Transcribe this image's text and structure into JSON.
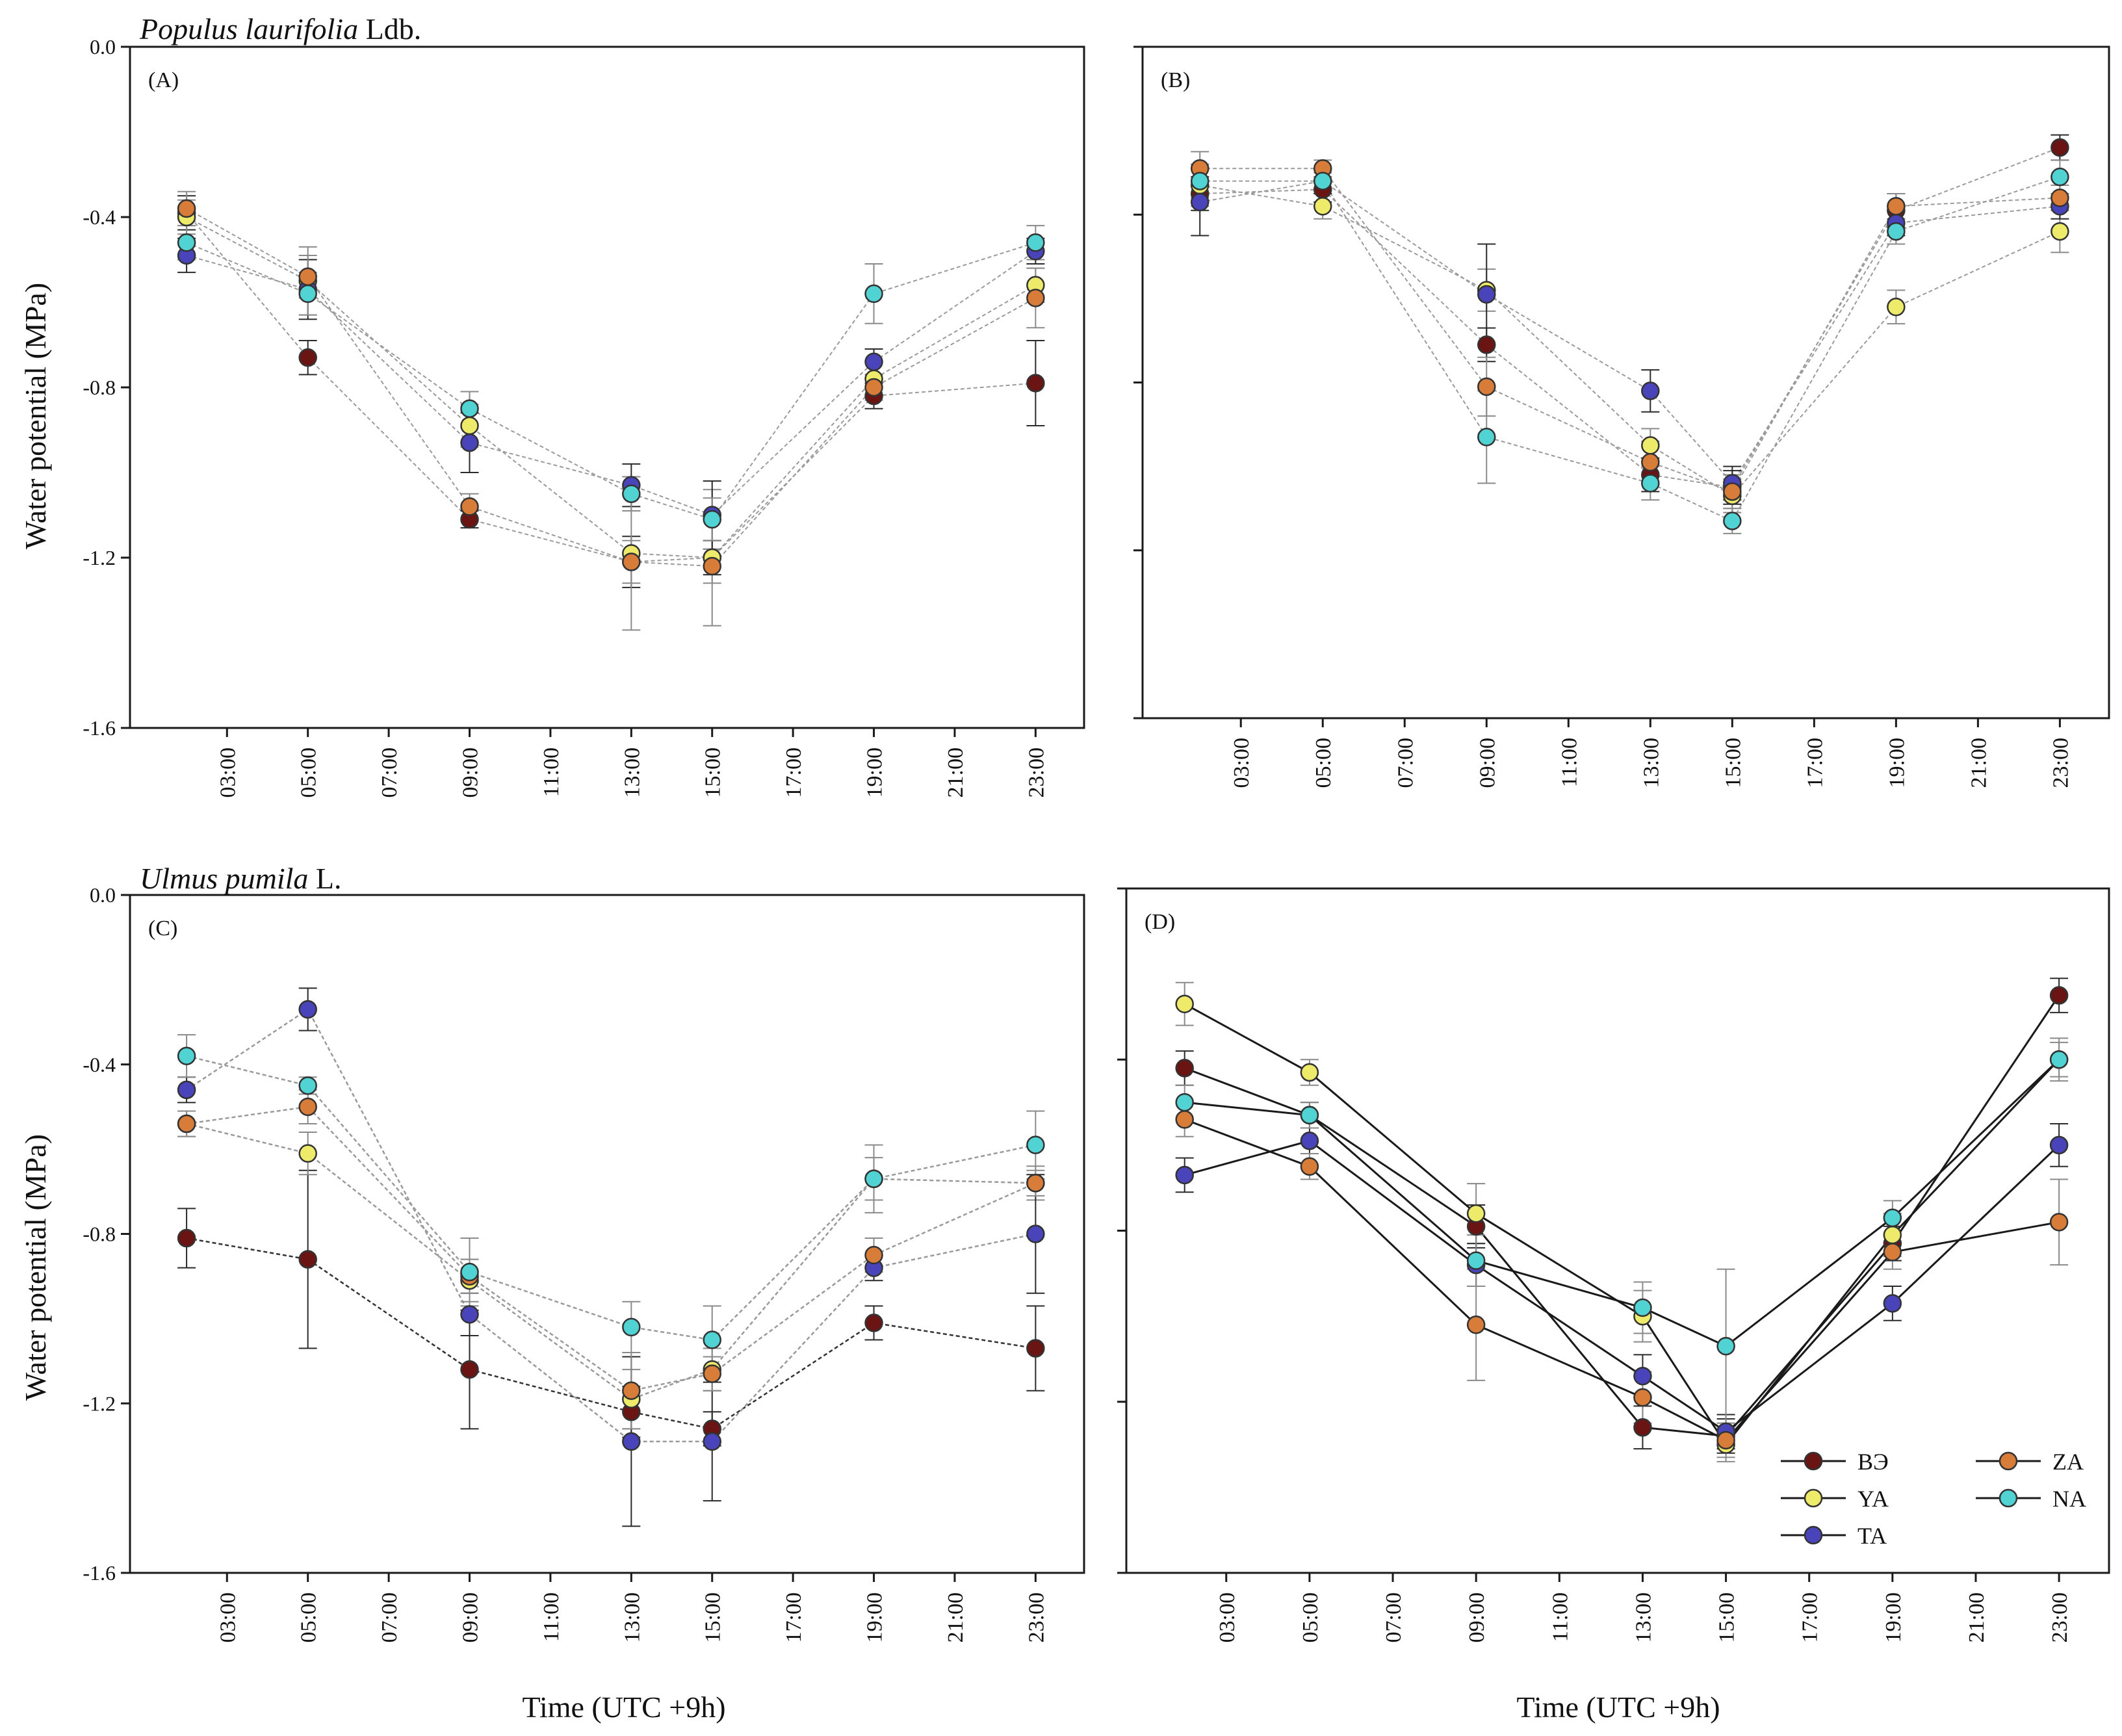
{
  "figure": {
    "x_axis_title": "Time (UTC +9h)",
    "y_axis_title": "Water potential (MPa)",
    "time_labels": [
      "03:00",
      "05:00",
      "07:00",
      "09:00",
      "11:00",
      "13:00",
      "15:00",
      "17:00",
      "19:00",
      "21:00",
      "23:00"
    ],
    "y_ticks": [
      "0.0",
      "-0.4",
      "-0.8",
      "-1.2",
      "-1.6"
    ],
    "species": [
      {
        "name": "Populus laurifolia",
        "author": " Ldb."
      },
      {
        "name": "Ulmus pumila",
        "author": " L."
      }
    ]
  },
  "legend": {
    "entries": [
      {
        "key": "BE",
        "label": "BЭ",
        "color": "#6b1414"
      },
      {
        "key": "YA",
        "label": "YA",
        "color": "#eeea6a"
      },
      {
        "key": "TA",
        "label": "TA",
        "color": "#4a44bb"
      },
      {
        "key": "ZA",
        "label": "ZA",
        "color": "#d87c3a"
      },
      {
        "key": "NA",
        "label": "NA",
        "color": "#52d3d3"
      }
    ]
  },
  "chart_data": [
    {
      "panel": "(A)",
      "type": "line",
      "ylim": [
        -1.6,
        0.0
      ],
      "x": [
        2,
        5,
        9,
        13,
        15,
        19,
        23
      ],
      "series": [
        {
          "name": "BЭ",
          "values": [
            -0.39,
            -0.73,
            -1.11,
            -1.21,
            -1.2,
            -0.82,
            -0.79
          ],
          "err": [
            0.04,
            0.04,
            0.02,
            0.06,
            0.04,
            0.03,
            0.1
          ]
        },
        {
          "name": "YA",
          "values": [
            -0.4,
            -0.55,
            -0.89,
            -1.19,
            -1.2,
            -0.78,
            -0.56
          ],
          "err": [
            0.04,
            0.08,
            0.05,
            0.18,
            0.16,
            0.04,
            0.04
          ]
        },
        {
          "name": "TA",
          "values": [
            -0.49,
            -0.57,
            -0.93,
            -1.03,
            -1.1,
            -0.74,
            -0.48
          ],
          "err": [
            0.04,
            0.07,
            0.07,
            0.05,
            0.08,
            0.03,
            0.03
          ]
        },
        {
          "name": "ZA",
          "values": [
            -0.38,
            -0.54,
            -1.08,
            -1.21,
            -1.22,
            -0.8,
            -0.59
          ],
          "err": [
            0.04,
            0.05,
            0.03,
            0.05,
            0.04,
            0.03,
            0.07
          ]
        },
        {
          "name": "NA",
          "values": [
            -0.46,
            -0.58,
            -0.85,
            -1.05,
            -1.11,
            -0.58,
            -0.46
          ],
          "err": [
            0.04,
            0.05,
            0.04,
            0.04,
            0.05,
            0.07,
            0.04
          ]
        }
      ]
    },
    {
      "panel": "(B)",
      "type": "line",
      "ylim": [
        -1.6,
        0.0
      ],
      "x": [
        2,
        5,
        9,
        13,
        15,
        19,
        23
      ],
      "series": [
        {
          "name": "BЭ",
          "values": [
            -0.35,
            -0.34,
            -0.71,
            -1.02,
            -1.05,
            -0.39,
            -0.24
          ],
          "err": [
            0.04,
            0.03,
            0.04,
            0.04,
            0.04,
            0.04,
            0.03
          ]
        },
        {
          "name": "YA",
          "values": [
            -0.33,
            -0.38,
            -0.58,
            -0.95,
            -1.07,
            -0.62,
            -0.44
          ],
          "err": [
            0.05,
            0.03,
            0.05,
            0.04,
            0.04,
            0.04,
            0.05
          ]
        },
        {
          "name": "TA",
          "values": [
            -0.37,
            -0.32,
            -0.59,
            -0.82,
            -1.04,
            -0.42,
            -0.38
          ],
          "err": [
            0.08,
            0.03,
            0.12,
            0.05,
            0.04,
            0.03,
            0.03
          ]
        },
        {
          "name": "ZA",
          "values": [
            -0.29,
            -0.29,
            -0.81,
            -0.99,
            -1.06,
            -0.38,
            -0.36
          ],
          "err": [
            0.04,
            0.02,
            0.07,
            0.05,
            0.04,
            0.03,
            0.03
          ]
        },
        {
          "name": "NA",
          "values": [
            -0.32,
            -0.32,
            -0.93,
            -1.04,
            -1.13,
            -0.44,
            -0.31
          ],
          "err": [
            0.04,
            0.02,
            0.11,
            0.04,
            0.03,
            0.03,
            0.04
          ]
        }
      ]
    },
    {
      "panel": "(C)",
      "type": "line",
      "ylim": [
        -1.6,
        0.0
      ],
      "x": [
        2,
        5,
        9,
        13,
        15,
        19,
        23
      ],
      "series": [
        {
          "name": "BЭ",
          "values": [
            -0.81,
            -0.86,
            -1.12,
            -1.22,
            -1.26,
            -1.01,
            -1.07
          ],
          "err": [
            0.07,
            0.21,
            0.14,
            0.06,
            0.04,
            0.04,
            0.1
          ]
        },
        {
          "name": "YA",
          "values": [
            -0.54,
            -0.61,
            -0.91,
            -1.19,
            -1.12,
            -0.67,
            -0.68
          ],
          "err": [
            0.03,
            0.05,
            0.05,
            0.07,
            0.05,
            0.05,
            0.04
          ]
        },
        {
          "name": "TA",
          "values": [
            -0.46,
            -0.27,
            -0.99,
            -1.29,
            -1.29,
            -0.88,
            -0.8
          ],
          "err": [
            0.03,
            0.05,
            0.05,
            0.2,
            0.14,
            0.03,
            0.14
          ]
        },
        {
          "name": "ZA",
          "values": [
            -0.54,
            -0.5,
            -0.9,
            -1.17,
            -1.13,
            -0.85,
            -0.68
          ],
          "err": [
            0.03,
            0.04,
            0.04,
            0.09,
            0.04,
            0.04,
            0.03
          ]
        },
        {
          "name": "NA",
          "values": [
            -0.38,
            -0.45,
            -0.89,
            -1.02,
            -1.05,
            -0.67,
            -0.59
          ],
          "err": [
            0.05,
            0.02,
            0.08,
            0.06,
            0.08,
            0.08,
            0.08
          ]
        }
      ]
    },
    {
      "panel": "(D)",
      "type": "line",
      "ylim": [
        -1.6,
        0.0
      ],
      "x": [
        2,
        5,
        9,
        13,
        15,
        19,
        23
      ],
      "series": [
        {
          "name": "BЭ",
          "values": [
            -0.42,
            -0.53,
            -0.79,
            -1.26,
            -1.28,
            -0.83,
            -0.25
          ],
          "err": [
            0.04,
            0.03,
            0.05,
            0.05,
            0.04,
            0.04,
            0.04
          ]
        },
        {
          "name": "YA",
          "values": [
            -0.27,
            -0.43,
            -0.76,
            -1.0,
            -1.3,
            -0.81,
            -0.4
          ],
          "err": [
            0.05,
            0.03,
            0.07,
            0.06,
            0.04,
            0.05,
            0.04
          ]
        },
        {
          "name": "TA",
          "values": [
            -0.67,
            -0.59,
            -0.88,
            -1.14,
            -1.27,
            -0.97,
            -0.6
          ],
          "err": [
            0.04,
            0.03,
            0.05,
            0.05,
            0.04,
            0.04,
            0.05
          ]
        },
        {
          "name": "ZA",
          "values": [
            -0.54,
            -0.65,
            -1.02,
            -1.19,
            -1.29,
            -0.85,
            -0.78
          ],
          "err": [
            0.04,
            0.03,
            0.13,
            0.06,
            0.04,
            0.04,
            0.1
          ]
        },
        {
          "name": "NA",
          "values": [
            -0.5,
            -0.53,
            -0.87,
            -0.98,
            -1.07,
            -0.77,
            -0.4
          ],
          "err": [
            0.04,
            0.03,
            0.06,
            0.06,
            0.18,
            0.04,
            0.05
          ]
        }
      ]
    }
  ]
}
